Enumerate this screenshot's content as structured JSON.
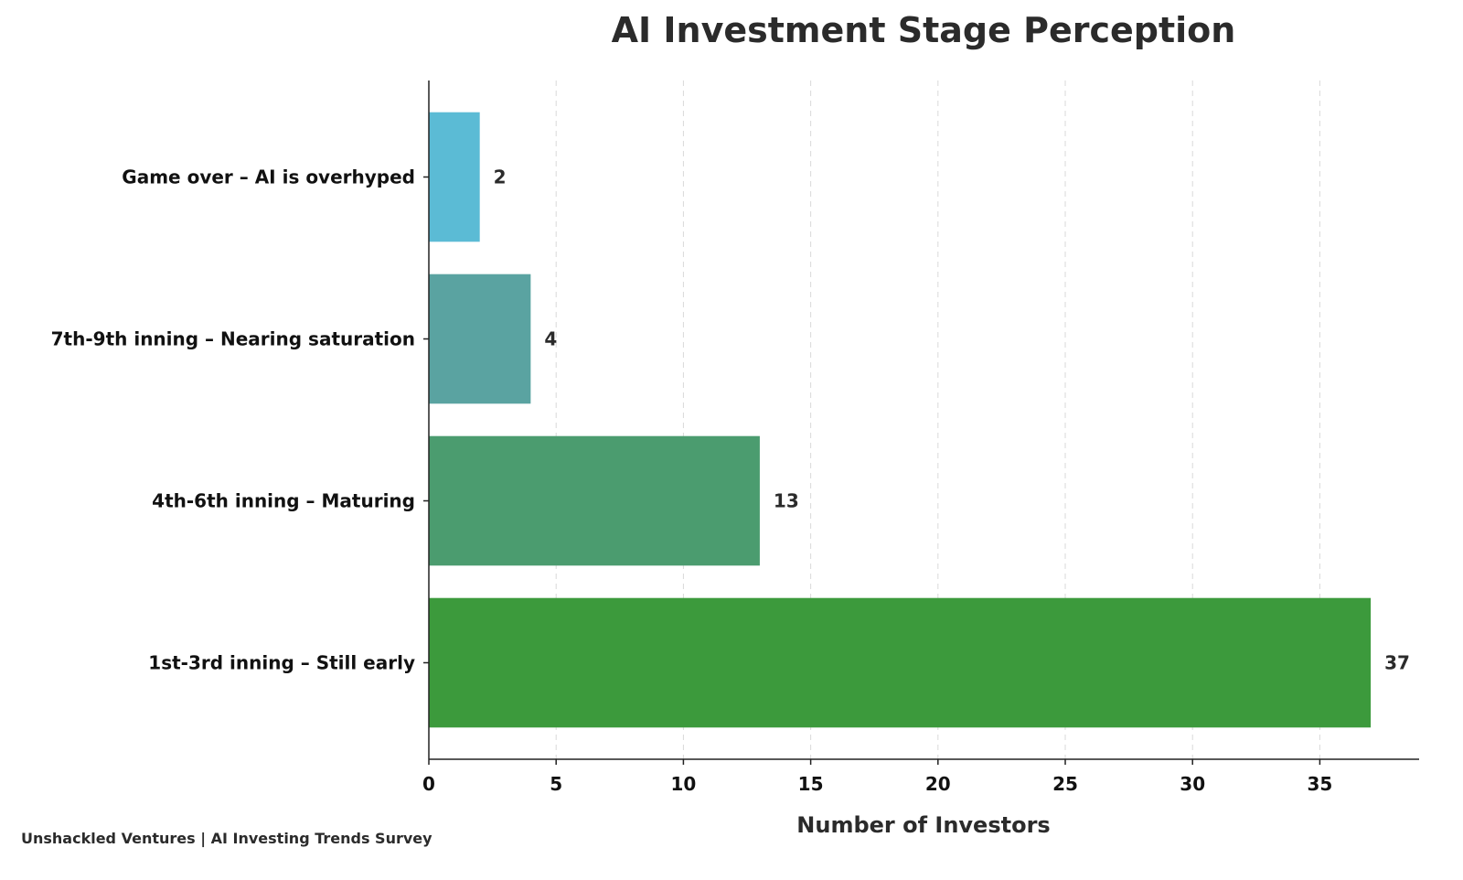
{
  "chart_data": {
    "type": "bar",
    "orientation": "horizontal",
    "title": "AI Investment Stage Perception",
    "xlabel": "Number of Investors",
    "ylabel": "",
    "categories": [
      "1st-3rd inning – Still early",
      "4th-6th inning – Maturing",
      "7th-9th inning – Nearing saturation",
      "Game over – AI is overhyped"
    ],
    "values": [
      37,
      13,
      4,
      2
    ],
    "colors": [
      "#3c9a3c",
      "#4b9c6f",
      "#5aa3a1",
      "#5bbbd5"
    ],
    "xlim": [
      0,
      38.9
    ],
    "xticks": [
      0,
      5,
      10,
      15,
      20,
      25,
      30,
      35
    ],
    "grid": "vertical dashed",
    "legend": "none"
  },
  "footer": {
    "source": "Unshackled Ventures | AI Investing Trends Survey"
  }
}
